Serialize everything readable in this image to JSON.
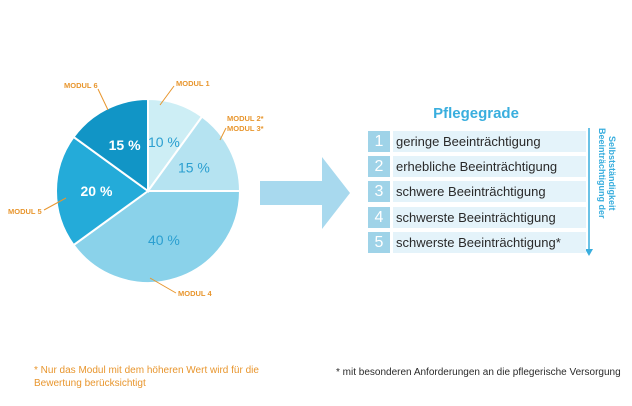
{
  "chart_data": {
    "type": "pie",
    "slices": [
      {
        "module": "MODUL 1",
        "label": "10 %",
        "value": 10,
        "color": "#cdeef5"
      },
      {
        "module": "MODUL 2* MODUL 3*",
        "label": "15 %",
        "value": 15,
        "color": "#b5e3f1"
      },
      {
        "module": "MODUL 4",
        "label": "40 %",
        "value": 40,
        "color": "#8ad2ea"
      },
      {
        "module": "MODUL 5",
        "label": "20 %",
        "value": 20,
        "color": "#24abd9"
      },
      {
        "module": "MODUL 6",
        "label": "15 %",
        "value": 15,
        "color": "#1195c6"
      }
    ],
    "callouts": {
      "modul1": "MODUL 1",
      "modul2": "MODUL 2*",
      "modul3": "MODUL 3*",
      "modul4": "MODUL 4",
      "modul5": "MODUL 5",
      "modul6": "MODUL 6"
    }
  },
  "pflegegrade": {
    "title": "Pflegegrade",
    "items": [
      {
        "num": "1",
        "label": "geringe Beeinträchtigung"
      },
      {
        "num": "2",
        "label": "erhebliche Beeinträchtigung"
      },
      {
        "num": "3",
        "label": "schwere Beeinträchtigung"
      },
      {
        "num": "4",
        "label": "schwerste Beeinträchtigung"
      },
      {
        "num": "5",
        "label": "schwerste Beeinträchtigung*"
      }
    ],
    "axis_line1": "Beeinträchtigung der",
    "axis_line2": "Selbstständigkeit"
  },
  "notes": {
    "left_line1": "* Nur das Modul mit dem höheren Wert wird für die",
    "left_line2": "Bewertung berücksichtigt",
    "right": "* mit besonderen Anforderungen an die pflegerische Versorgung"
  },
  "colors": {
    "orange": "#e8962e",
    "arrow": "#a8d9ee",
    "title_blue": "#39aede",
    "num_box": "#9fd3e8",
    "row_bg": "#e4f3fa",
    "axis_arrow": "#39aede"
  }
}
